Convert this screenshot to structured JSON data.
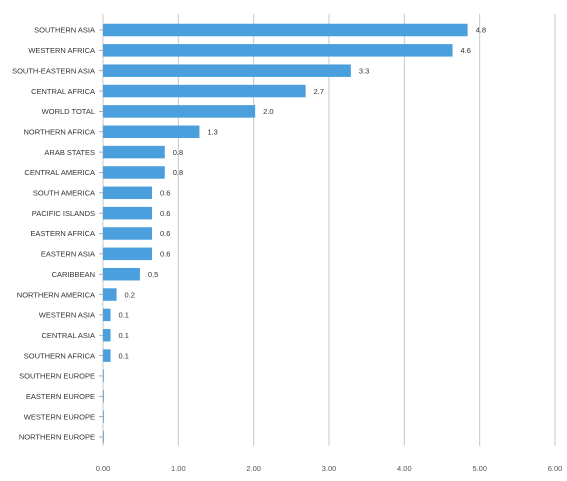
{
  "chart_data": {
    "type": "bar",
    "orientation": "horizontal",
    "title": "",
    "xlabel": "",
    "ylabel": "",
    "xlim": [
      0,
      6
    ],
    "ticks": [
      "0.00",
      "1.00",
      "2.00",
      "3.00",
      "4.00",
      "5.00",
      "6.00"
    ],
    "grid": true,
    "bar_color": "#4a9fdc",
    "categories": [
      "SOUTHERN ASIA",
      "WESTERN AFRICA",
      "SOUTH-EASTERN ASIA",
      "CENTRAL AFRICA",
      "WORLD TOTAL",
      "NORTHERN AFRICA",
      "ARAB STATES",
      "CENTRAL AMERICA",
      "SOUTH AMERICA",
      "PACIFIC ISLANDS",
      "EASTERN AFRICA",
      "EASTERN ASIA",
      "CARIBBEAN",
      "NORTHERN AMERICA",
      "WESTERN ASIA",
      "CENTRAL ASIA",
      "SOUTHERN AFRICA",
      "SOUTHERN EUROPE",
      "EASTERN EUROPE",
      "WESTERN EUROPE",
      "NORTHERN EUROPE"
    ],
    "values": [
      4.84,
      4.64,
      3.29,
      2.69,
      2.02,
      1.28,
      0.82,
      0.82,
      0.65,
      0.65,
      0.65,
      0.65,
      0.49,
      0.18,
      0.1,
      0.1,
      0.1,
      0.01,
      0.01,
      0.01,
      0.01
    ],
    "labels": [
      "4.8",
      "4.6",
      "3.3",
      "2.7",
      "2.0",
      "1.3",
      "0.8",
      "0.8",
      "0.6",
      "0.6",
      "0.6",
      "0.6",
      "0.5",
      "0.2",
      "0.1",
      "0.1",
      "0.1",
      "",
      "",
      "",
      ""
    ]
  }
}
